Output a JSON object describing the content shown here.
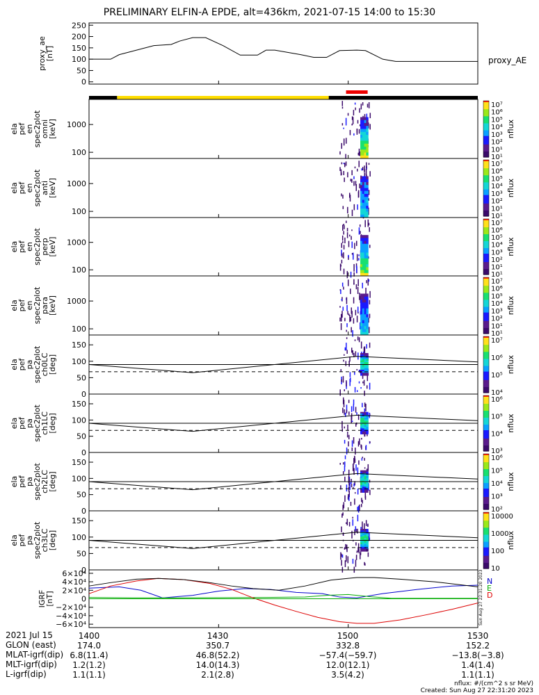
{
  "title": "PRELIMINARY ELFIN-A EPDE, alt=436km, 2021-07-15 14:00 to 15:30",
  "colors": {
    "ae_line": "#000000",
    "fgm_n": "#0000cc",
    "fgm_e": "#00aa00",
    "fgm_d": "#dd0000",
    "fgm_total": "#000000",
    "bar_dark": "#000000",
    "bar_sun": "#ffdd00",
    "bar_science": "#ee0000"
  },
  "status_bar": {
    "segments": [
      {
        "state": "eclipse",
        "t0": 0,
        "t1": 6.5
      },
      {
        "state": "sunlit",
        "t0": 6.5,
        "t1": 55.5
      },
      {
        "state": "eclipse",
        "t0": 55.5,
        "t1": 90
      }
    ],
    "science_zone": [
      59.5,
      64.5
    ]
  },
  "chart_data": [
    {
      "id": "proxy_ae",
      "type": "line",
      "ylabel": "proxy_ae\n[nT]",
      "legend": "proxy_AE",
      "ylim": [
        -10,
        260
      ],
      "yticks": [
        0,
        50,
        100,
        150,
        200,
        250
      ],
      "x_minutes": [
        0,
        5,
        7,
        10,
        15,
        19,
        21,
        24,
        27,
        31,
        35,
        39,
        41,
        43,
        49,
        52,
        55,
        58,
        62,
        64,
        68,
        71,
        75,
        80,
        85,
        90
      ],
      "values": [
        100,
        100,
        120,
        135,
        160,
        165,
        180,
        195,
        195,
        160,
        118,
        118,
        140,
        140,
        120,
        108,
        108,
        138,
        140,
        138,
        100,
        90,
        90,
        90,
        90,
        90
      ]
    },
    {
      "id": "pef_en_omni",
      "type": "heatmap",
      "ylabel": "ela\npef\nen\nspec2plot\nomni\n[keV]",
      "yscale": "log",
      "ylim": [
        60,
        8000
      ],
      "ytick_labels": [
        "100",
        "1000"
      ],
      "colorbar": {
        "label": "nflux",
        "ticks": [
          "10⁷",
          "10⁶",
          "10⁵",
          "10⁴",
          "10³",
          "10²",
          "10¹",
          "10¹"
        ]
      }
    },
    {
      "id": "pef_en_anti",
      "type": "heatmap",
      "ylabel": "ela\npef\nen\nspec2plot\nanti\n[keV]",
      "yscale": "log",
      "ylim": [
        60,
        8000
      ],
      "ytick_labels": [
        "100",
        "1000"
      ],
      "colorbar": {
        "label": "nflux",
        "ticks": [
          "10⁷",
          "10⁶",
          "10⁵",
          "10⁴",
          "10³",
          "10²",
          "10¹",
          "10¹"
        ]
      }
    },
    {
      "id": "pef_en_perp",
      "type": "heatmap",
      "ylabel": "ela\npef\nen\nspec2plot\nperp\n[keV]",
      "yscale": "log",
      "ylim": [
        60,
        8000
      ],
      "ytick_labels": [
        "100",
        "1000"
      ],
      "colorbar": {
        "label": "nflux",
        "ticks": [
          "10⁷",
          "10⁶",
          "10⁵",
          "10⁴",
          "10³",
          "10²",
          "10¹",
          "10¹"
        ]
      }
    },
    {
      "id": "pef_en_para",
      "type": "heatmap",
      "ylabel": "ela\npef\nen\nspec2plot\npara\n[keV]",
      "yscale": "log",
      "ylim": [
        60,
        8000
      ],
      "ytick_labels": [
        "100",
        "1000"
      ],
      "colorbar": {
        "label": "nflux",
        "ticks": [
          "10⁷",
          "10⁶",
          "10⁵",
          "10⁴",
          "10³",
          "10²",
          "10¹",
          "10¹"
        ]
      }
    },
    {
      "id": "pef_pa_ch0LC",
      "type": "heatmap",
      "ylabel": "ela\npef\npa\nspec2plot\nch0LC\n[deg]",
      "ylim": [
        0,
        180
      ],
      "yticks": [
        0,
        50,
        100,
        150
      ],
      "colorbar": {
        "label": "nflux",
        "ticks": [
          "10⁷",
          "10⁶",
          "10⁵",
          "10⁴"
        ]
      }
    },
    {
      "id": "pef_pa_ch1LC",
      "type": "heatmap",
      "ylabel": "ela\npef\npa\nspec2plot\nch1LC\n[deg]",
      "ylim": [
        0,
        180
      ],
      "yticks": [
        0,
        50,
        100,
        150
      ],
      "colorbar": {
        "label": "nflux",
        "ticks": [
          "10⁶",
          "10⁵",
          "10⁴",
          "10³"
        ]
      }
    },
    {
      "id": "pef_pa_ch2LC",
      "type": "heatmap",
      "ylabel": "ela\npef\npa\nspec2plot\nch2LC\n[deg]",
      "ylim": [
        0,
        180
      ],
      "yticks": [
        0,
        50,
        100,
        150
      ],
      "colorbar": {
        "label": "nflux",
        "ticks": [
          "10⁶",
          "10⁵",
          "10⁴",
          "10³",
          "10²"
        ]
      }
    },
    {
      "id": "pef_pa_ch3LC",
      "type": "heatmap",
      "ylabel": "ela\npef\npa\nspec2plot\nch3LC\n[deg]",
      "ylim": [
        0,
        180
      ],
      "yticks": [
        0,
        50,
        100,
        150
      ],
      "colorbar": {
        "label": "nflux",
        "ticks": [
          "10000",
          "1000",
          "100",
          "10"
        ]
      }
    },
    {
      "id": "igrf",
      "type": "line",
      "ylabel": "IGRF\n[nT]",
      "ylim": [
        -68000,
        68000
      ],
      "ytick_labels": [
        "6×10⁴",
        "4×10⁴",
        "2×10⁴",
        "0",
        "−2×10⁴",
        "−4×10⁴",
        "−6×10⁴"
      ],
      "legend": [
        "N",
        "E",
        "D"
      ],
      "series": [
        {
          "name": "N",
          "x": [
            0,
            7,
            12,
            17,
            24,
            30,
            36,
            42,
            48,
            54,
            58,
            62,
            68,
            76,
            84,
            90
          ],
          "values": [
            25000,
            28000,
            20000,
            2000,
            8000,
            18000,
            24000,
            22000,
            15000,
            12000,
            4000,
            2000,
            12000,
            22000,
            30000,
            32000
          ]
        },
        {
          "name": "E",
          "x": [
            0,
            10,
            20,
            30,
            40,
            50,
            55,
            60,
            65,
            70,
            80,
            90
          ],
          "values": [
            3000,
            2000,
            2000,
            2500,
            3000,
            4000,
            8000,
            10000,
            5000,
            1000,
            1000,
            1000
          ]
        },
        {
          "name": "D",
          "x": [
            0,
            5,
            11,
            16,
            22,
            28,
            33,
            38,
            43,
            48,
            53,
            58,
            62,
            66,
            72,
            78,
            84,
            90
          ],
          "values": [
            12000,
            30000,
            42000,
            48000,
            45000,
            36000,
            22000,
            2000,
            -15000,
            -30000,
            -44000,
            -54000,
            -58000,
            -58000,
            -50000,
            -38000,
            -25000,
            -10000
          ]
        },
        {
          "name": "total",
          "x": [
            0,
            5,
            11,
            16,
            22,
            28,
            33,
            38,
            44,
            50,
            56,
            62,
            66,
            72,
            80,
            90
          ],
          "values": [
            30000,
            38000,
            46000,
            48000,
            45000,
            38000,
            30000,
            24000,
            20000,
            30000,
            44000,
            50000,
            50000,
            46000,
            40000,
            28000
          ]
        }
      ]
    }
  ],
  "pa_reference": {
    "solid_deg": 90,
    "dashed_deg": 68,
    "x": [
      0,
      24,
      62,
      90
    ],
    "loss_cone": [
      90,
      65,
      115,
      98
    ]
  },
  "footer": {
    "rows": [
      {
        "label": "2021 Jul 15",
        "cols": [
          "1400",
          "1430",
          "1500",
          "1530"
        ]
      },
      {
        "label": "GLON (east)",
        "cols": [
          "174.0",
          "350.7",
          "332.8",
          "152.2"
        ]
      },
      {
        "label": "MLAT-igrf(dip)",
        "cols": [
          "6.8(11.4)",
          "46.8(52.2)",
          "−57.4(−59.7)",
          "−13.8(−3.8)"
        ]
      },
      {
        "label": "MLT-igrf(dip)",
        "cols": [
          "1.2(1.2)",
          "14.0(14.3)",
          "12.0(12.1)",
          "1.4(1.4)"
        ]
      },
      {
        "label": "L-igrf(dip)",
        "cols": [
          "1.1(1.1)",
          "2.1(2.8)",
          "3.5(4.2)",
          "1.1(1.1)"
        ]
      }
    ],
    "nflux_unit": "nflux: #/(cm^2 s sr MeV)",
    "created": "Created: Sun Aug 27 22:31:20 2023",
    "side_stamp": "Sun Aug 27 22:31:20 2023"
  }
}
